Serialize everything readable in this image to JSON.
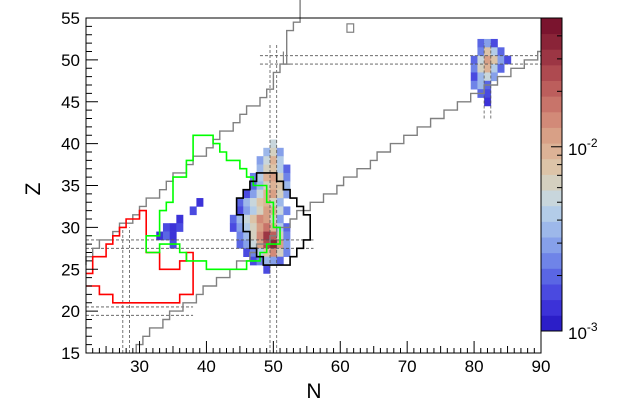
{
  "chart_data": {
    "type": "heatmap",
    "xlabel": "N",
    "ylabel": "Z",
    "xlim": [
      22,
      90
    ],
    "ylim": [
      15,
      55
    ],
    "x_ticks": [
      30,
      40,
      50,
      60,
      70,
      80,
      90
    ],
    "y_ticks": [
      15,
      20,
      25,
      30,
      35,
      40,
      45,
      50,
      55
    ],
    "x_tick_labels": [
      "30",
      "40",
      "50",
      "60",
      "70",
      "80",
      "90"
    ],
    "y_tick_labels": [
      "15",
      "20",
      "25",
      "30",
      "35",
      "40",
      "45",
      "50",
      "55"
    ],
    "colorbar": {
      "scale": "log",
      "range": [
        0.001,
        0.05
      ],
      "tick_values": [
        0.001,
        0.01
      ],
      "tick_labels": [
        "10^-3",
        "10^-2"
      ],
      "colors": [
        "#2b1ec8",
        "#3c32d8",
        "#4a4ae0",
        "#5a66e4",
        "#6f84e8",
        "#86a0ea",
        "#9db8ea",
        "#b3cce8",
        "#c8d6dc",
        "#d4d0c0",
        "#dcc4a8",
        "#dcb296",
        "#d8a086",
        "#d28a78",
        "#c8746a",
        "#bc5e5c",
        "#ae4a50",
        "#9c3644",
        "#8a2438",
        "#7a142e"
      ]
    },
    "contours": [
      {
        "name": "gray-stability",
        "color": "#808080"
      },
      {
        "name": "red",
        "color": "#ff0000"
      },
      {
        "name": "green",
        "color": "#00ff00"
      },
      {
        "name": "black",
        "color": "#000000"
      }
    ],
    "magic_numbers": [
      20,
      28,
      50,
      82
    ]
  }
}
